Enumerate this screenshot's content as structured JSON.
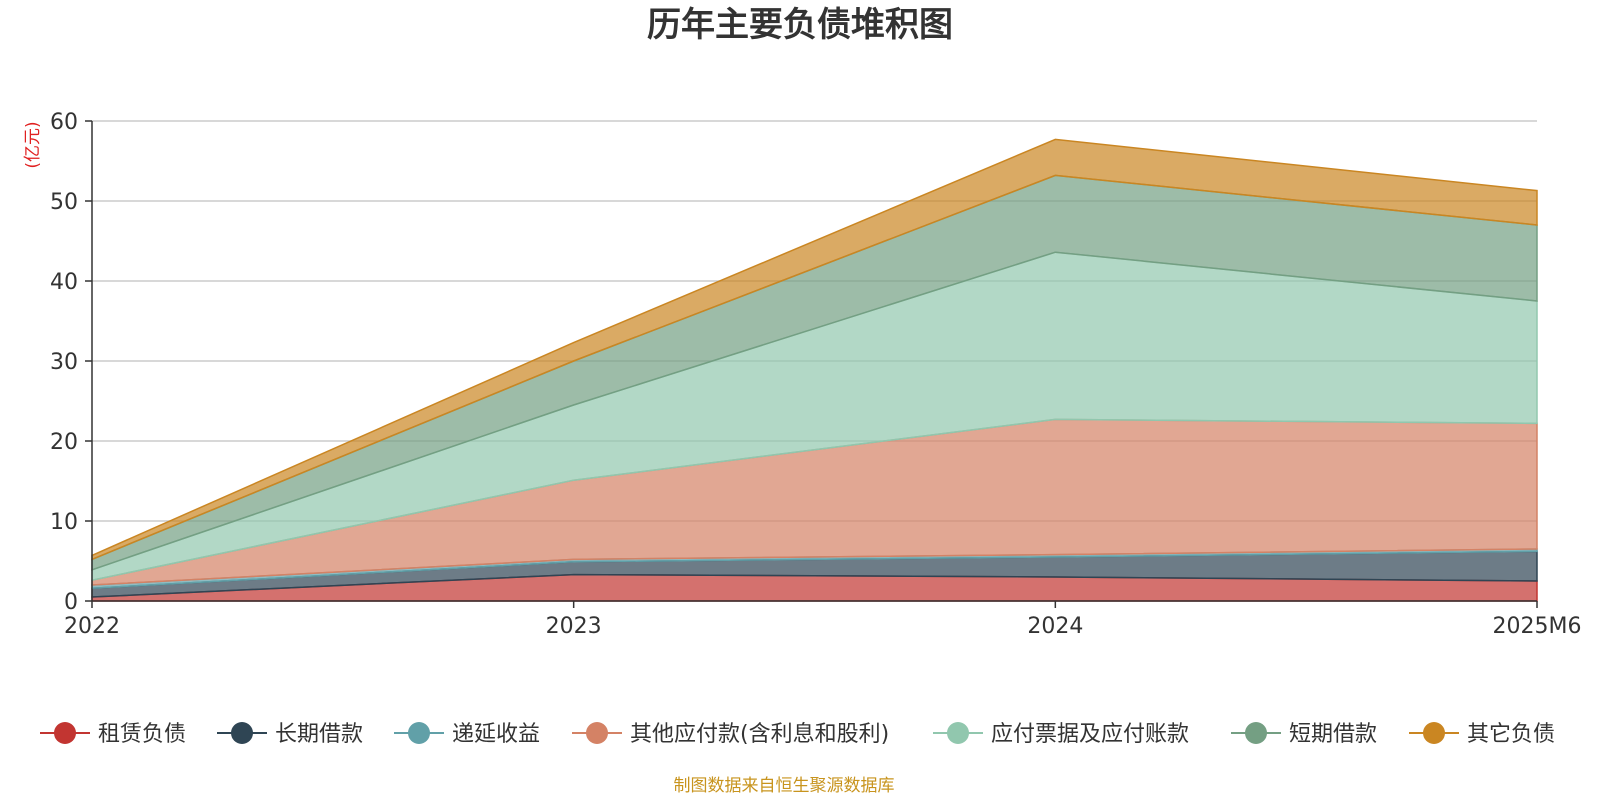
{
  "chart_data": {
    "type": "area",
    "stacked": true,
    "title": "历年主要负债堆积图",
    "unit_label": "(亿元)",
    "x": [
      "2022",
      "2023",
      "2024",
      "2025M6"
    ],
    "ylim": [
      0,
      60
    ],
    "yticks": [
      "0",
      "10",
      "20",
      "30",
      "40",
      "50",
      "60"
    ],
    "grid": true,
    "legend_position": "bottom",
    "series": [
      {
        "name": "租赁负债",
        "color": "#c23531",
        "values": [
          0.5,
          3.3,
          3.0,
          2.5
        ]
      },
      {
        "name": "长期借款",
        "color": "#2f4554",
        "values": [
          1.1,
          1.6,
          2.5,
          3.7
        ]
      },
      {
        "name": "递延收益",
        "color": "#61a0a8",
        "values": [
          0.4,
          0.3,
          0.3,
          0.3
        ]
      },
      {
        "name": "其他应付款(含利息和股利)",
        "color": "#d48265",
        "values": [
          0.6,
          9.9,
          16.9,
          15.7
        ]
      },
      {
        "name": "应付票据及应付账款",
        "color": "#91c7ae",
        "values": [
          1.3,
          9.4,
          20.9,
          15.3
        ]
      },
      {
        "name": "短期借款",
        "color": "#749f83",
        "values": [
          1.3,
          5.5,
          9.6,
          9.5
        ]
      },
      {
        "name": "其它负债",
        "color": "#ca8622",
        "values": [
          0.5,
          2.3,
          4.5,
          4.3
        ]
      }
    ],
    "source_note": "制图数据来自恒生聚源数据库"
  }
}
